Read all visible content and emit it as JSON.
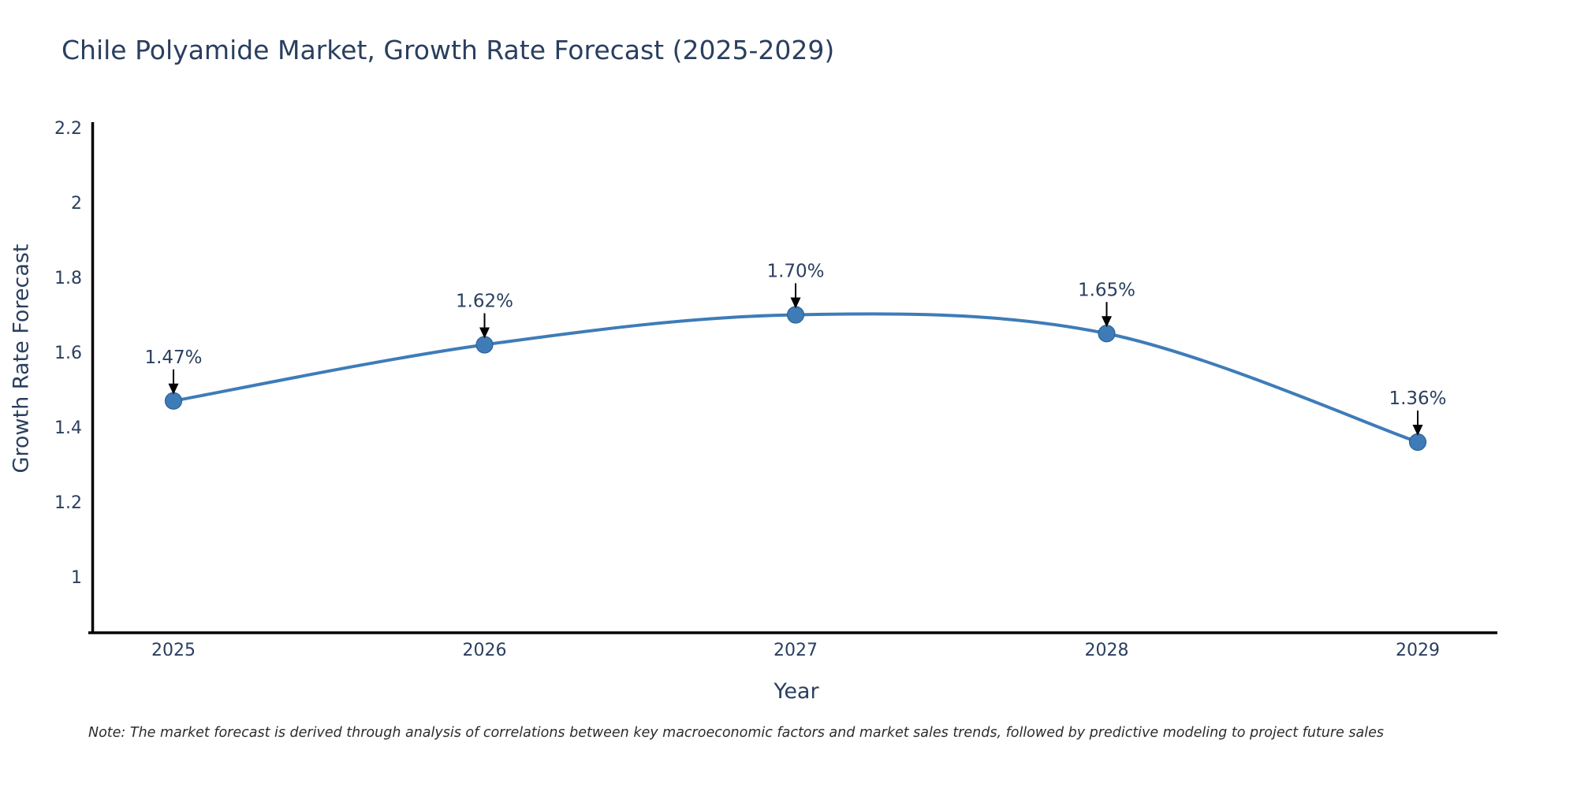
{
  "title": "Chile Polyamide Market, Growth Rate Forecast (2025-2029)",
  "note": "Note: The market forecast is derived through analysis of correlations between key macroeconomic factors and market sales trends, followed by predictive modeling to project future sales",
  "chart_data": {
    "type": "line",
    "title": "Chile Polyamide Market, Growth Rate Forecast (2025-2029)",
    "xlabel": "Year",
    "ylabel": "Growth Rate Forecast",
    "x": [
      "2025",
      "2026",
      "2027",
      "2028",
      "2029"
    ],
    "series": [
      {
        "name": "Growth Rate Forecast",
        "values": [
          1.47,
          1.62,
          1.7,
          1.65,
          1.36
        ]
      }
    ],
    "point_labels": [
      "1.47%",
      "1.62%",
      "1.70%",
      "1.65%",
      "1.36%"
    ],
    "ylim": [
      0.85,
      2.21
    ],
    "ytick_values": [
      1,
      1.2,
      1.4,
      1.6,
      1.8,
      2,
      2.2
    ],
    "ytick_labels": [
      "1",
      "1.2",
      "1.4",
      "1.6",
      "1.8",
      "2",
      "2.2"
    ],
    "grid": false,
    "legend": false,
    "line_shape": "spline",
    "colors": {
      "line": "#3E7CB8",
      "marker": "#3E7CB8",
      "marker_edge": "#2E6296",
      "axis": "#000000",
      "text": "#2a3f5f",
      "annotation_arrow": "#000000"
    }
  }
}
